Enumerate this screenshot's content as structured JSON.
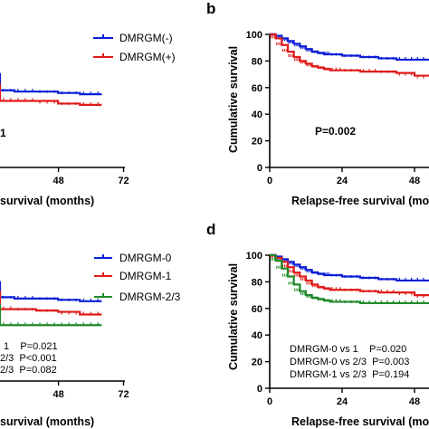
{
  "colors": {
    "blue": "#0b1fd6",
    "red": "#e01b1b",
    "green": "#1f8a2a",
    "axis": "#000000"
  },
  "chart_data": [
    {
      "id": "a",
      "panel_label": "",
      "type": "line",
      "step": true,
      "xlabel": "survival (months)",
      "ylabel": "",
      "x_ticks": [
        48,
        72
      ],
      "y_ticks": [],
      "xlim": [
        0,
        72
      ],
      "ylim": [
        0,
        100
      ],
      "legend_position": "top-right",
      "series": [
        {
          "name": "DMRGM(-)",
          "color": "#0b1fd6",
          "x": [
            0,
            4,
            8,
            12,
            16,
            20,
            24,
            30,
            36,
            42,
            48,
            54,
            60,
            66
          ],
          "y": [
            71,
            69,
            67,
            65,
            63,
            61,
            60,
            59,
            58,
            57,
            57,
            56,
            55,
            55
          ]
        },
        {
          "name": "DMRGM(+)",
          "color": "#e01b1b",
          "x": [
            0,
            4,
            8,
            12,
            16,
            20,
            24,
            30,
            36,
            42,
            48,
            54,
            60,
            66
          ],
          "y": [
            63,
            60,
            58,
            55,
            53,
            52,
            51,
            51,
            50,
            50,
            50,
            48,
            47,
            47
          ]
        }
      ],
      "annotations": [
        "1"
      ]
    },
    {
      "id": "b",
      "panel_label": "b",
      "type": "line",
      "step": true,
      "xlabel": "Relapse-free survival (mon",
      "ylabel": "Cumulative survival",
      "x_ticks": [
        0,
        24,
        48
      ],
      "y_ticks": [
        0,
        20,
        40,
        60,
        80,
        100
      ],
      "xlim": [
        0,
        54
      ],
      "ylim": [
        0,
        100
      ],
      "legend_position": "none",
      "series": [
        {
          "name": "DMRGM(-)",
          "color": "#0b1fd6",
          "x": [
            0,
            2,
            4,
            6,
            8,
            10,
            12,
            14,
            16,
            18,
            20,
            24,
            30,
            36,
            42,
            48,
            54
          ],
          "y": [
            100,
            99,
            97,
            95,
            93,
            91,
            89,
            87,
            86,
            85,
            85,
            84,
            83,
            82,
            81,
            81,
            81
          ]
        },
        {
          "name": "DMRGM(+)",
          "color": "#e01b1b",
          "x": [
            0,
            2,
            4,
            6,
            8,
            10,
            12,
            14,
            16,
            18,
            20,
            24,
            30,
            36,
            42,
            48,
            54
          ],
          "y": [
            100,
            97,
            92,
            87,
            83,
            80,
            78,
            76,
            75,
            74,
            73,
            73,
            72,
            72,
            71,
            69,
            67
          ]
        }
      ],
      "annotations": [
        "P=0.002"
      ]
    },
    {
      "id": "c",
      "panel_label": "",
      "type": "line",
      "step": true,
      "xlabel": "survival (months)",
      "ylabel": "",
      "x_ticks": [
        48,
        72
      ],
      "y_ticks": [],
      "xlim": [
        0,
        72
      ],
      "ylim": [
        0,
        100
      ],
      "legend_position": "top-right",
      "series": [
        {
          "name": "DMRGM-0",
          "color": "#0b1fd6",
          "x": [
            0,
            4,
            8,
            12,
            16,
            20,
            24,
            30,
            36,
            42,
            48,
            54,
            60,
            66
          ],
          "y": [
            75,
            73,
            71,
            69,
            67,
            66,
            65,
            64,
            63,
            62,
            62,
            61,
            60,
            60
          ]
        },
        {
          "name": "DMRGM-1",
          "color": "#e01b1b",
          "x": [
            0,
            4,
            8,
            12,
            16,
            20,
            24,
            30,
            36,
            42,
            48,
            54,
            60,
            66
          ],
          "y": [
            68,
            65,
            62,
            59,
            57,
            56,
            55,
            55,
            54,
            54,
            53,
            52,
            50,
            50
          ]
        },
        {
          "name": "DMRGM-2/3",
          "color": "#1f8a2a",
          "x": [
            0,
            4,
            8,
            12,
            16,
            20,
            24,
            30,
            36,
            42,
            48,
            54,
            60,
            66
          ],
          "y": [
            58,
            52,
            47,
            44,
            43,
            42,
            42,
            42,
            42,
            42,
            42,
            42,
            42,
            42
          ]
        }
      ],
      "annotations": [
        "1    P=0.021",
        "2/3  P<0.001",
        "2/3  P=0.082"
      ]
    },
    {
      "id": "d",
      "panel_label": "d",
      "type": "line",
      "step": true,
      "xlabel": "Relapse-free survival (mon",
      "ylabel": "Cumulative survival",
      "x_ticks": [
        0,
        24,
        48
      ],
      "y_ticks": [
        0,
        20,
        40,
        60,
        80,
        100
      ],
      "xlim": [
        0,
        54
      ],
      "ylim": [
        0,
        100
      ],
      "legend_position": "none",
      "series": [
        {
          "name": "DMRGM-0",
          "color": "#0b1fd6",
          "x": [
            0,
            2,
            4,
            6,
            8,
            10,
            12,
            14,
            16,
            18,
            20,
            24,
            30,
            36,
            42,
            48,
            54
          ],
          "y": [
            100,
            99,
            97,
            95,
            93,
            91,
            89,
            87,
            86,
            85,
            85,
            84,
            83,
            82,
            81,
            81,
            81
          ]
        },
        {
          "name": "DMRGM-1",
          "color": "#e01b1b",
          "x": [
            0,
            2,
            4,
            6,
            8,
            10,
            12,
            14,
            16,
            18,
            20,
            24,
            30,
            36,
            42,
            48,
            54
          ],
          "y": [
            100,
            98,
            95,
            91,
            87,
            84,
            81,
            78,
            76,
            75,
            74,
            74,
            73,
            72,
            72,
            70,
            68
          ]
        },
        {
          "name": "DMRGM-2/3",
          "color": "#1f8a2a",
          "x": [
            0,
            2,
            4,
            6,
            8,
            10,
            12,
            14,
            16,
            18,
            20,
            24,
            30,
            36,
            42,
            48,
            54
          ],
          "y": [
            100,
            96,
            90,
            84,
            78,
            73,
            70,
            68,
            67,
            66,
            65,
            65,
            64,
            64,
            64,
            64,
            64
          ]
        }
      ],
      "annotations": [
        "DMRGM-0 vs 1    P=0.020",
        "DMRGM-0 vs 2/3  P=0.003",
        "DMRGM-1 vs 2/3  P=0.194"
      ]
    }
  ]
}
